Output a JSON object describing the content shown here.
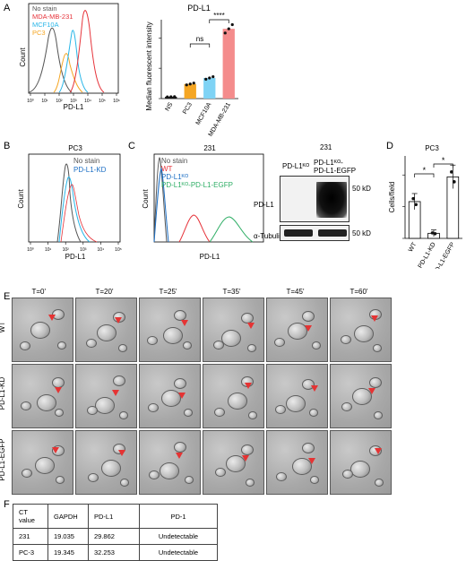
{
  "panelA": {
    "letter": "A",
    "histogram": {
      "ylabel": "Count",
      "xlabel": "PD-L1",
      "legend": [
        "No stain",
        "MDA-MB-231",
        "MCF10A",
        "PC3"
      ],
      "legend_colors": [
        "#555555",
        "#e6333a",
        "#29b6e8",
        "#f5a623"
      ],
      "xticks": [
        "10⁰",
        "10¹",
        "10²",
        "10³",
        "10⁴",
        "10⁵",
        "10⁶"
      ]
    },
    "bar": {
      "title": "PD-L1",
      "ylabel": "Median fluorescent intensity",
      "sig1": "ns",
      "sig2": "****"
    }
  },
  "panelB": {
    "letter": "B",
    "title": "PC3",
    "ylabel": "Count",
    "xlabel": "PD-L1",
    "legend": [
      "No stain",
      "PD-L1-KD"
    ],
    "xticks": [
      "10⁰",
      "10¹",
      "10²",
      "10³",
      "10⁴",
      "10⁵"
    ]
  },
  "panelC": {
    "letter": "C",
    "title": "231",
    "ylabel": "Count",
    "xlabel": "PD-L1",
    "legend": [
      "No stain",
      "WT",
      "PD-L1ᴷᴼ",
      "PD-L1ᴷᴼ-PD-L1-EGFP"
    ],
    "blot": {
      "title": "231",
      "col1": "PD-L1ᴷᴼ",
      "col2a": "PD-L1ᴷᴼ-",
      "col2b": "PD-L1-EGFP",
      "row1": "PD-L1",
      "row2": "α-Tubulin",
      "mw1": "50 kD",
      "mw2": "50 kD"
    }
  },
  "panelD": {
    "letter": "D",
    "title": "PC3",
    "ylabel": "Cells/field",
    "sig1": "*",
    "sig2": "*"
  },
  "panelE": {
    "letter": "E",
    "timepoints": [
      "T=0'",
      "T=20'",
      "T=25'",
      "T=35'",
      "T=45'",
      "T=60'"
    ],
    "rows": [
      "WT",
      "PD-L1-KD",
      "PD-L1-EGFP"
    ]
  },
  "panelF": {
    "letter": "F",
    "header": [
      "CT value",
      "GAPDH",
      "PD-L1",
      "PD-1"
    ],
    "rows": [
      [
        "231",
        "19.035",
        "29.862",
        "Undetectable"
      ],
      [
        "PC-3",
        "19.345",
        "32.253",
        "Undetectable"
      ]
    ]
  },
  "chart_data": [
    {
      "type": "bar",
      "title": "PD-L1",
      "categories": [
        "NS",
        "PC3",
        "MCF10A",
        "MDA-MB-231"
      ],
      "values": [
        30,
        240,
        340,
        1150
      ],
      "colors": [
        "#1a1a1a",
        "#f5a623",
        "#7fd3f5",
        "#f48c8c"
      ],
      "ylabel": "Median fluorescent intensity",
      "ylim": [
        0,
        1300
      ],
      "annotations": [
        "ns",
        "****"
      ]
    },
    {
      "type": "bar",
      "title": "PC3",
      "categories": [
        "WT",
        "PD-L1-KD",
        "PD-L1-EGFP"
      ],
      "values": [
        58,
        8,
        97
      ],
      "ylabel": "Cells/field",
      "ylim": [
        0,
        130
      ],
      "annotations": [
        "*",
        "*"
      ]
    }
  ]
}
